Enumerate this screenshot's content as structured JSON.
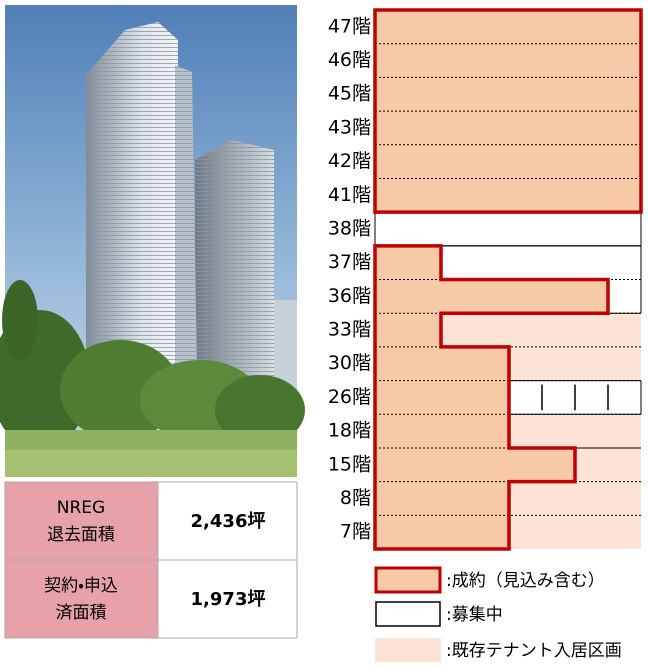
{
  "table": {
    "rows": [
      {
        "label": [
          "NREG",
          "退去面積"
        ],
        "value": "2,436坪"
      },
      {
        "label": [
          "契約・申込",
          "済面積"
        ],
        "value": "1,973坪"
      }
    ]
  },
  "floors": [
    "47階",
    "46階",
    "45階",
    "43階",
    "42階",
    "41階",
    "38階",
    "37階",
    "36階",
    "33階",
    "30階",
    "26階",
    "18階",
    "15階",
    "8階",
    "7階"
  ],
  "legend": [
    ":成約（見込み含む）",
    ":募集中",
    ":既存テナント入居区画"
  ]
}
